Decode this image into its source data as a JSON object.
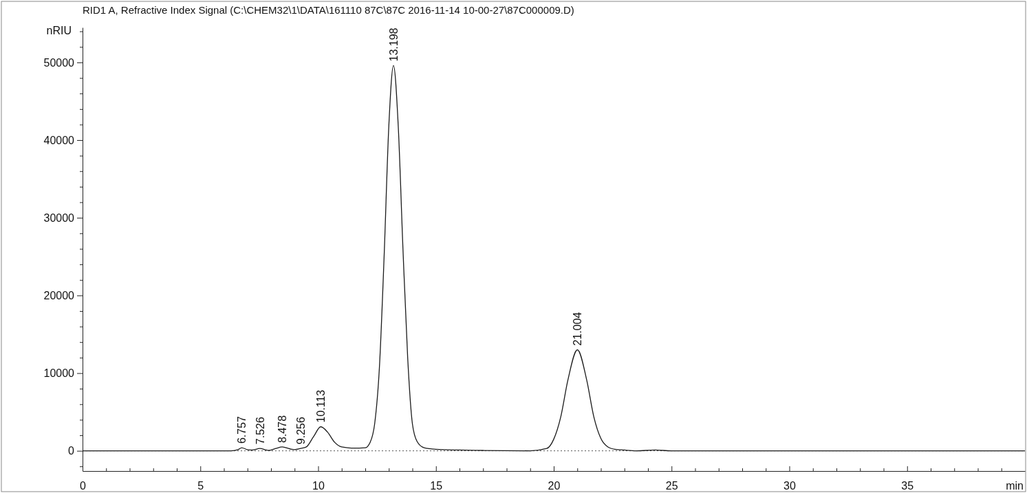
{
  "chart_data": {
    "type": "line",
    "title": "RID1 A, Refractive Index Signal (C:\\CHEM32\\1\\DATA\\161110 87C\\87C 2016-11-14 10-00-27\\87C000009.D)",
    "xlabel": "min",
    "ylabel": "nRIU",
    "xlim": [
      0,
      40
    ],
    "ylim": [
      -2600,
      54500
    ],
    "xticks": [
      0,
      {
        "value": 1,
        "label": null
      },
      {
        "value": 2,
        "label": null
      },
      {
        "value": 3,
        "label": null
      },
      {
        "value": 4,
        "label": null
      },
      5,
      {
        "value": 6,
        "label": null
      },
      {
        "value": 7,
        "label": null
      },
      {
        "value": 8,
        "label": null
      },
      {
        "value": 9,
        "label": null
      },
      10,
      {
        "value": 11,
        "label": null
      },
      {
        "value": 12,
        "label": null
      },
      {
        "value": 13,
        "label": null
      },
      {
        "value": 14,
        "label": null
      },
      15,
      {
        "value": 16,
        "label": null
      },
      {
        "value": 17,
        "label": null
      },
      {
        "value": 18,
        "label": null
      },
      {
        "value": 19,
        "label": null
      },
      20,
      {
        "value": 21,
        "label": null
      },
      {
        "value": 22,
        "label": null
      },
      {
        "value": 23,
        "label": null
      },
      {
        "value": 24,
        "label": null
      },
      25,
      {
        "value": 26,
        "label": null
      },
      {
        "value": 27,
        "label": null
      },
      {
        "value": 28,
        "label": null
      },
      {
        "value": 29,
        "label": null
      },
      30,
      {
        "value": 31,
        "label": null
      },
      {
        "value": 32,
        "label": null
      },
      {
        "value": 33,
        "label": null
      },
      {
        "value": 34,
        "label": null
      },
      35,
      {
        "value": 36,
        "label": null
      },
      {
        "value": 37,
        "label": null
      },
      {
        "value": 38,
        "label": null
      },
      {
        "value": 39,
        "label": null
      }
    ],
    "yticks": [
      {
        "value": -2000,
        "label": null
      },
      0,
      {
        "value": 2000,
        "label": null
      },
      {
        "value": 4000,
        "label": null
      },
      {
        "value": 6000,
        "label": null
      },
      {
        "value": 8000,
        "label": null
      },
      10000,
      {
        "value": 12000,
        "label": null
      },
      {
        "value": 14000,
        "label": null
      },
      {
        "value": 16000,
        "label": null
      },
      {
        "value": 18000,
        "label": null
      },
      20000,
      {
        "value": 22000,
        "label": null
      },
      {
        "value": 24000,
        "label": null
      },
      {
        "value": 26000,
        "label": null
      },
      {
        "value": 28000,
        "label": null
      },
      30000,
      {
        "value": 32000,
        "label": null
      },
      {
        "value": 34000,
        "label": null
      },
      {
        "value": 36000,
        "label": null
      },
      {
        "value": 38000,
        "label": null
      },
      40000,
      {
        "value": 42000,
        "label": null
      },
      {
        "value": 44000,
        "label": null
      },
      {
        "value": 46000,
        "label": null
      },
      {
        "value": 48000,
        "label": null
      },
      50000,
      {
        "value": 52000,
        "label": null
      },
      {
        "value": 54000,
        "label": null
      }
    ],
    "series": [
      {
        "color": "#1a1a1a",
        "x": [
          0,
          6.3,
          6.6,
          6.757,
          7.0,
          7.2,
          7.526,
          7.8,
          7.9,
          8.2,
          8.478,
          8.8,
          9.0,
          9.256,
          9.5,
          9.8,
          10.113,
          10.4,
          10.7,
          11.0,
          11.5,
          12.0,
          12.2,
          12.4,
          12.6,
          12.8,
          13.0,
          13.198,
          13.4,
          13.6,
          13.8,
          14.0,
          14.2,
          14.5,
          15,
          16,
          17,
          19,
          19.7,
          20.0,
          20.3,
          20.6,
          21.004,
          21.4,
          21.7,
          22.0,
          22.3,
          22.6,
          23,
          23.5,
          24.3,
          25,
          40
        ],
        "values": [
          0,
          0,
          150,
          400,
          150,
          100,
          300,
          100,
          50,
          300,
          500,
          250,
          150,
          300,
          500,
          1800,
          3100,
          2400,
          1100,
          500,
          350,
          400,
          1050,
          3500,
          10700,
          25000,
          41800,
          49600,
          41800,
          26000,
          12000,
          3500,
          1200,
          400,
          200,
          100,
          50,
          0,
          300,
          1500,
          4400,
          9100,
          13000,
          9100,
          4400,
          1600,
          500,
          200,
          100,
          0,
          100,
          0,
          0
        ]
      }
    ],
    "line_style": "solid",
    "ref_lines": [
      {
        "axis": "y",
        "value": 0,
        "line_style": "dotted",
        "color": "#555555"
      }
    ],
    "annotations": [
      {
        "text": "6.757",
        "x": 6.757,
        "y": 400
      },
      {
        "text": "7.526",
        "x": 7.526,
        "y": 300
      },
      {
        "text": "8.478",
        "x": 8.478,
        "y": 500
      },
      {
        "text": "9.256",
        "x": 9.256,
        "y": 300
      },
      {
        "text": "10.113",
        "x": 10.113,
        "y": 3100
      },
      {
        "text": "13.198",
        "x": 13.198,
        "y": 49600
      },
      {
        "text": "21.004",
        "x": 21.004,
        "y": 13000
      }
    ]
  }
}
